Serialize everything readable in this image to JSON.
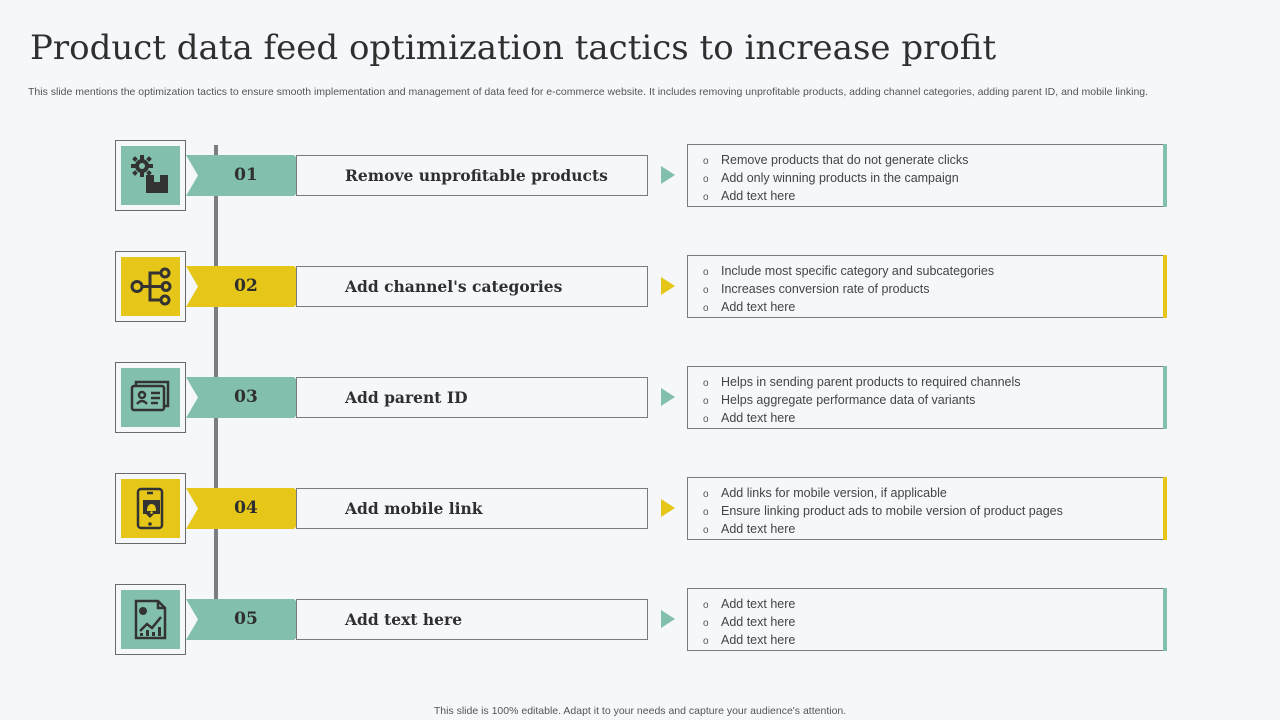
{
  "title": "Product data feed optimization tactics to increase profit",
  "subtitle": "This slide mentions the optimization tactics to ensure smooth implementation  and management of data feed for e-commerce website. It includes removing unprofitable products, adding channel categories, adding parent ID,  and mobile  linking.",
  "footer": "This slide is 100% editable.  Adapt it to your needs and capture your audience's attention.",
  "bullet_symbol": "o",
  "colors": {
    "teal": "#82bfad",
    "yellow": "#e5c619",
    "line": "#7d7d7d",
    "background": "#f5f7fb"
  },
  "rows": [
    {
      "number": "01",
      "label": "Remove unprofitable products",
      "color": "#82bfad",
      "icon": "gear-box-icon",
      "bullets": [
        "Remove  products that do not generate clicks",
        "Add only winning  products in the campaign",
        "Add text here"
      ]
    },
    {
      "number": "02",
      "label": "Add channel's categories",
      "color": "#e5c619",
      "icon": "hierarchy-icon",
      "bullets": [
        "Include most specific category and subcategories",
        "Increases conversion  rate of products",
        "Add text here"
      ]
    },
    {
      "number": "03",
      "label": "Add parent ID",
      "color": "#82bfad",
      "icon": "id-card-icon",
      "bullets": [
        "Helps in sending parent products to required channels",
        "Helps aggregate performance  data of variants",
        "Add text here"
      ]
    },
    {
      "number": "04",
      "label": "Add mobile link",
      "color": "#e5c619",
      "icon": "mobile-notification-icon",
      "bullets": [
        "Add links for mobile version,  if applicable",
        "Ensure linking product ads to mobile version  of product pages",
        "Add text here"
      ]
    },
    {
      "number": "05",
      "label": "Add text here",
      "color": "#82bfad",
      "icon": "report-chart-icon",
      "bullets": [
        "Add text here",
        "Add text here",
        "Add text here"
      ]
    }
  ]
}
